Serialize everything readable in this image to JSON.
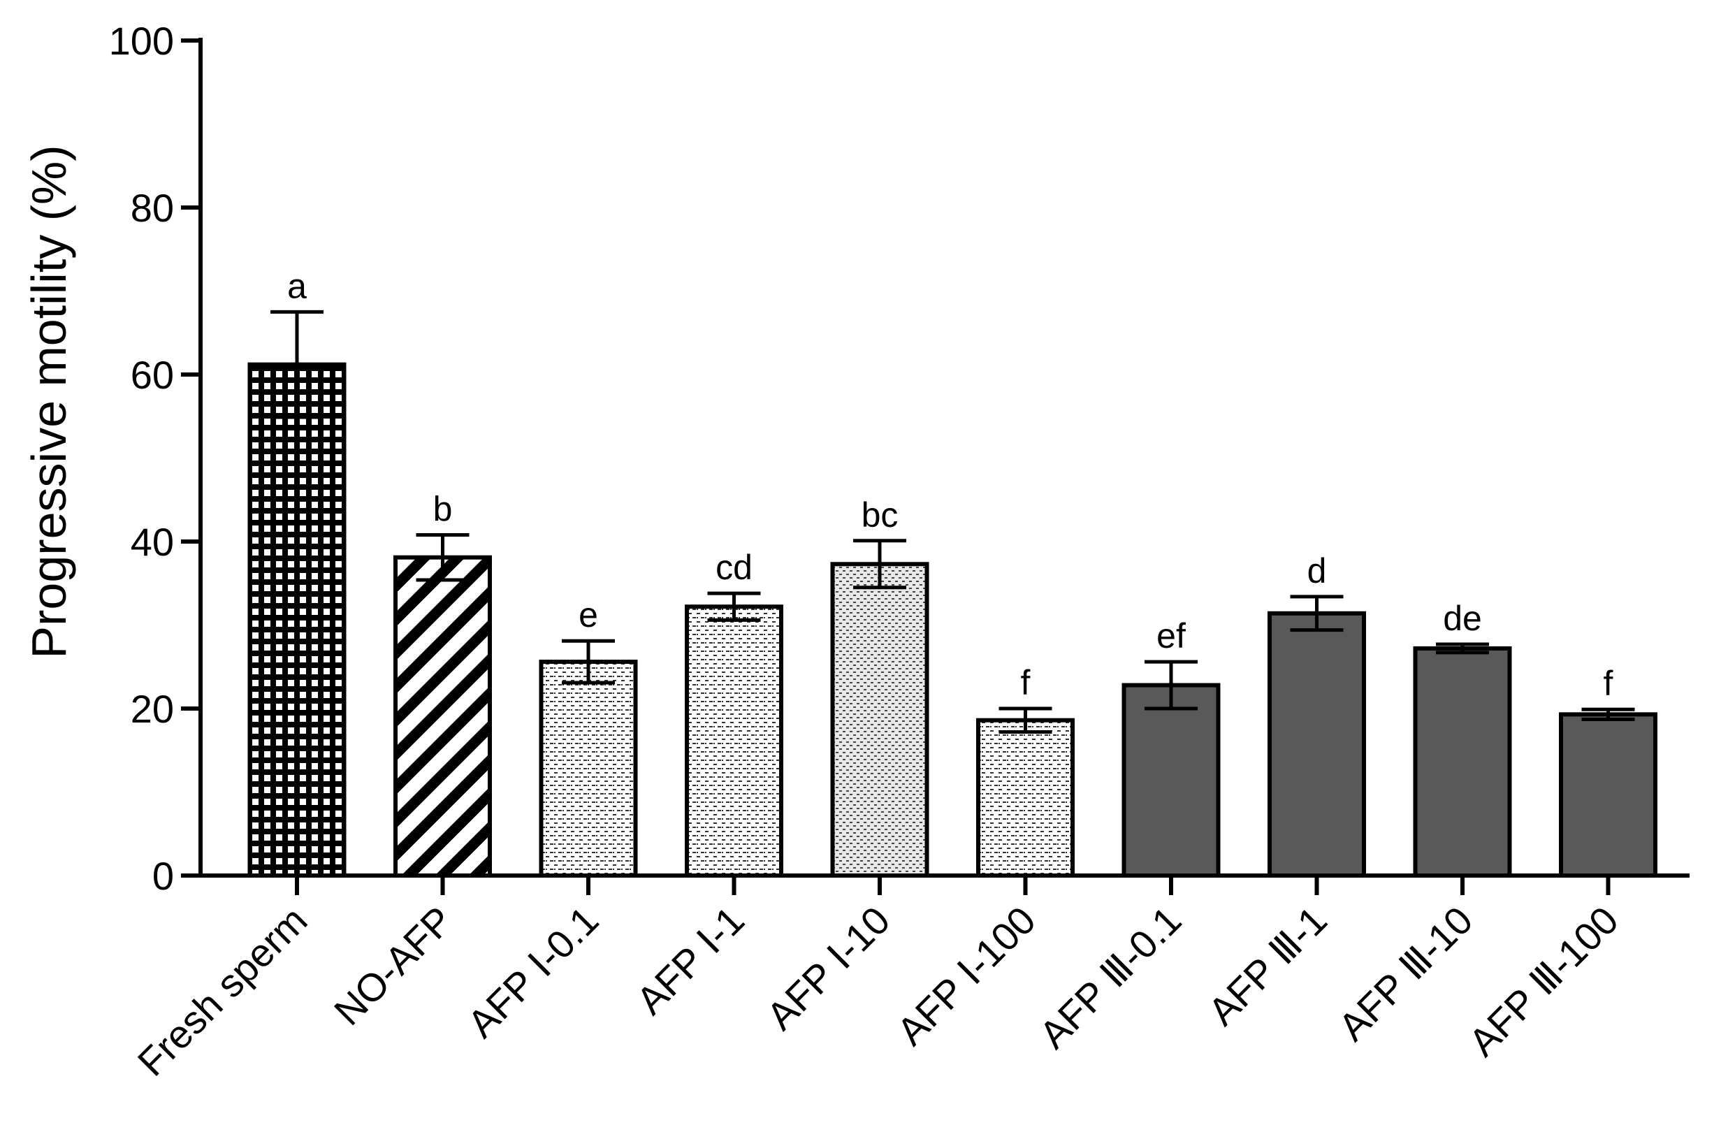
{
  "chart_data": {
    "type": "bar",
    "title": "",
    "xlabel": "",
    "ylabel": "Progressive motility (%)",
    "ylim": [
      0,
      100
    ],
    "yticks": [
      0,
      20,
      40,
      60,
      80,
      100
    ],
    "ytick_labels": [
      "0",
      "20",
      "40",
      "60",
      "80",
      "100"
    ],
    "grid": false,
    "legend": "none",
    "categories": [
      "Fresh sperm",
      "NO-AFP",
      "AFP Ⅰ-0.1",
      "AFP Ⅰ-1",
      "AFP Ⅰ-10",
      "AFP Ⅰ-100",
      "AFP Ⅲ-0.1",
      "AFP Ⅲ-1",
      "AFP Ⅲ-10",
      "AFP Ⅲ-100"
    ],
    "values": [
      61.2,
      38.1,
      25.6,
      32.2,
      37.3,
      18.6,
      22.8,
      31.4,
      27.2,
      19.3
    ],
    "errors": [
      6.3,
      2.7,
      2.5,
      1.6,
      2.8,
      1.4,
      2.8,
      2.0,
      0.5,
      0.6
    ],
    "significance": [
      "a",
      "b",
      "e",
      "cd",
      "bc",
      "f",
      "ef",
      "d",
      "de",
      "f"
    ],
    "fills": [
      "grid",
      "diagonal",
      "dots",
      "dots",
      "dots-dense",
      "dots",
      "solid",
      "solid",
      "solid",
      "solid"
    ],
    "colors": {
      "solid": "#595959",
      "stroke": "#000000",
      "dots_bg": "#ffffff",
      "dense_bg": "#e8e8e8"
    }
  }
}
